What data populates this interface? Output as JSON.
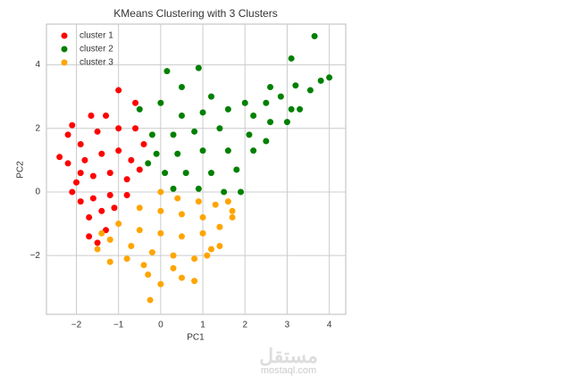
{
  "chart_data": {
    "type": "scatter",
    "title": "KMeans Clustering with 3 Clusters",
    "x_label": "PC1",
    "y_label": "PC2",
    "xlim": [
      -2.71,
      4.39
    ],
    "ylim": [
      -3.85,
      5.28
    ],
    "xticks": [
      {
        "value": -2,
        "label": "−2"
      },
      {
        "value": -1,
        "label": "−1"
      },
      0,
      1,
      2,
      3,
      4
    ],
    "yticks": [
      {
        "value": -2,
        "label": "−2"
      },
      0,
      2,
      4
    ],
    "grid": true,
    "legend": "upper left",
    "series": [
      {
        "name": "cluster 1",
        "color": "#ff0000",
        "x": [
          -1.0,
          -0.6,
          -1.65,
          -1.3,
          -2.1,
          -2.2,
          -2.4,
          -2.2,
          -1.9,
          -1.5,
          -1.0,
          -0.6,
          -0.4,
          -1.8,
          -1.4,
          -1.0,
          -0.7,
          -2.0,
          -1.6,
          -1.2,
          -0.8,
          -0.5,
          -1.9,
          -1.6,
          -1.2,
          -0.8,
          -1.7,
          -1.4,
          -1.1,
          -1.7,
          -1.5,
          -1.3,
          -2.1,
          -1.9
        ],
        "y": [
          3.2,
          2.8,
          2.4,
          2.4,
          2.1,
          1.8,
          1.1,
          0.9,
          1.5,
          1.9,
          2.0,
          2.0,
          1.5,
          1.0,
          1.2,
          1.3,
          1.0,
          0.3,
          0.5,
          0.6,
          0.4,
          0.7,
          -0.3,
          -0.2,
          -0.1,
          -0.1,
          -0.8,
          -0.6,
          -0.5,
          -1.4,
          -1.6,
          -1.2,
          0.0,
          0.6
        ]
      },
      {
        "name": "cluster 2",
        "color": "#008000",
        "x": [
          3.65,
          3.1,
          4.0,
          3.8,
          3.55,
          3.2,
          2.6,
          2.85,
          2.5,
          3.1,
          3.3,
          2.0,
          0.15,
          0.9,
          0.5,
          1.2,
          -0.5,
          0.0,
          0.5,
          1.0,
          1.6,
          2.2,
          2.6,
          3.0,
          -0.2,
          0.3,
          0.8,
          1.4,
          2.1,
          2.5,
          -0.1,
          0.4,
          1.0,
          1.6,
          2.2,
          0.1,
          0.6,
          1.2,
          1.8,
          0.3,
          0.9,
          1.5,
          1.9,
          -0.3
        ],
        "y": [
          4.9,
          4.2,
          3.6,
          3.5,
          3.2,
          3.35,
          3.3,
          3.0,
          2.8,
          2.6,
          2.6,
          2.8,
          3.8,
          3.9,
          3.3,
          3.0,
          2.6,
          2.8,
          2.4,
          2.5,
          2.6,
          2.4,
          2.2,
          2.2,
          1.8,
          1.8,
          1.9,
          2.0,
          1.8,
          1.6,
          1.2,
          1.2,
          1.3,
          1.3,
          1.3,
          0.6,
          0.6,
          0.6,
          0.7,
          0.1,
          0.1,
          0.0,
          0.0,
          0.9
        ]
      },
      {
        "name": "cluster 3",
        "color": "#ffa500",
        "x": [
          -1.5,
          -1.2,
          -0.8,
          -0.3,
          -0.25,
          0.0,
          0.5,
          0.8,
          1.1,
          1.4,
          1.2,
          1.7,
          1.7,
          1.6,
          0.0,
          0.4,
          0.9,
          1.3,
          -0.5,
          0.0,
          0.5,
          1.0,
          -1.0,
          -0.5,
          0.0,
          0.5,
          1.0,
          -1.2,
          -0.7,
          -0.2,
          0.3,
          0.8,
          -0.4,
          0.3,
          -1.4,
          1.4
        ],
        "y": [
          -1.8,
          -2.2,
          -2.1,
          -2.6,
          -3.4,
          -2.9,
          -2.7,
          -2.8,
          -2.0,
          -1.7,
          -1.8,
          -0.6,
          -0.8,
          -0.3,
          0.0,
          -0.2,
          -0.3,
          -0.4,
          -0.5,
          -0.6,
          -0.7,
          -0.8,
          -1.0,
          -1.2,
          -1.3,
          -1.4,
          -1.3,
          -1.5,
          -1.7,
          -1.9,
          -2.0,
          -2.1,
          -2.3,
          -2.4,
          -1.3,
          -1.1
        ]
      }
    ]
  },
  "watermark": {
    "name": "مستقل",
    "url": "mostaql.com"
  }
}
